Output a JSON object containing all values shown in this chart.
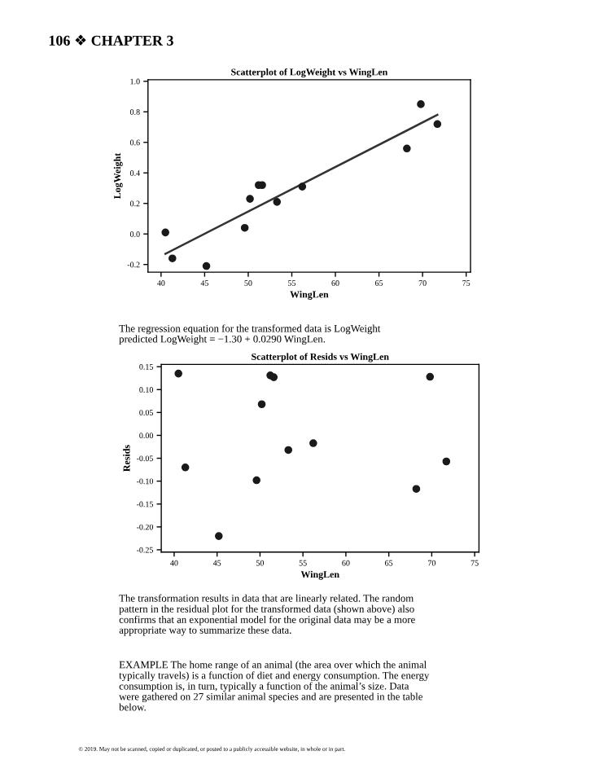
{
  "chart_data": [
    {
      "type": "scatter",
      "title": "Scatterplot of LogWeight vs WingLen",
      "xlabel": "WingLen",
      "ylabel": "LogWeight",
      "grid": false,
      "legend": false,
      "xlim": [
        38.5,
        75.5
      ],
      "xticks": [
        40,
        45,
        50,
        55,
        60,
        65,
        70,
        75
      ],
      "ylim": [
        -0.25,
        1.01
      ],
      "yticks": [
        {
          "value": -0.2,
          "label": "-0.2"
        },
        {
          "value": 0,
          "label": "0.0"
        },
        0.2,
        0.4,
        0.6,
        0.8,
        {
          "value": 1,
          "label": "1.0"
        }
      ],
      "series": [
        {
          "marker": "circle",
          "color": "#1a1a1a",
          "x": [
            40.5,
            41.3,
            45.2,
            49.6,
            50.2,
            51.2,
            51.6,
            53.3,
            56.2,
            68.2,
            69.8,
            71.7
          ],
          "values": [
            0.01,
            -0.16,
            -0.21,
            0.04,
            0.23,
            0.32,
            0.32,
            0.21,
            0.31,
            0.56,
            0.85,
            0.72
          ]
        },
        {
          "type": "line",
          "color": "#333333",
          "line_style": "solid",
          "x": [
            40.5,
            71.7
          ],
          "values": [
            -0.13,
            0.78
          ]
        }
      ],
      "annotations": [
        "106 ❖ CHAPTER 3",
        "The regression equation for the transformed data is LogWeight\npredicted LogWeight = −1.30 + 0.0290 WingLen."
      ]
    },
    {
      "type": "scatter",
      "title": "Scatterplot of Resids vs WingLen",
      "xlabel": "WingLen",
      "ylabel": "Resids",
      "marker": "circle",
      "grid": false,
      "legend": false,
      "xlim": [
        38.5,
        75.5
      ],
      "xticks": [
        40,
        45,
        50,
        55,
        60,
        65,
        70,
        75
      ],
      "ylim": [
        -0.255,
        0.155
      ],
      "yticks": [
        {
          "value": -0.25,
          "label": "-0.25"
        },
        {
          "value": -0.2,
          "label": "-0.20"
        },
        {
          "value": -0.15,
          "label": "-0.15"
        },
        {
          "value": -0.1,
          "label": "-0.10"
        },
        {
          "value": -0.05,
          "label": "-0.05"
        },
        {
          "value": 0,
          "label": "0.00"
        },
        {
          "value": 0.05,
          "label": "0.05"
        },
        {
          "value": 0.1,
          "label": "0.10"
        },
        {
          "value": 0.15,
          "label": "0.15"
        }
      ],
      "series": [
        {
          "color": "#1a1a1a",
          "x": [
            40.5,
            41.3,
            45.2,
            49.6,
            50.2,
            51.2,
            51.6,
            53.3,
            56.2,
            68.2,
            69.8,
            71.7
          ],
          "values": [
            0.135,
            -0.07,
            -0.22,
            -0.098,
            0.068,
            0.131,
            0.127,
            -0.032,
            -0.017,
            -0.117,
            0.128,
            -0.057
          ]
        }
      ],
      "annotations": [
        "The transformation results in data that are linearly related. The random\npattern in the residual plot for the transformed data (shown above) also\nconfirms that an exponential model for the original data may be a more\nappropriate way to summarize these data.",
        "EXAMPLE The home range of an animal (the area over which the animal\ntypically travels) is a function of diet and energy consumption. The energy\nconsumption is, in turn, typically a function of the animal’s size. Data\nwere gathered on 27 similar animal species and are presented in the table\nbelow.",
        "© 2019. May not be scanned, copied or duplicated, or posted to a publicly accessible website, in whole or in part."
      ]
    }
  ]
}
